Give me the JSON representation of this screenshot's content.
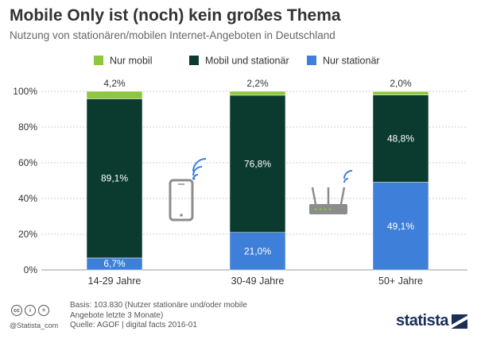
{
  "title": "Mobile Only ist (noch) kein großes Thema",
  "subtitle": "Nutzung von stationären/mobilen Internet-Angeboten in Deutschland",
  "colors": {
    "nur_mobil": "#8ec63f",
    "mobil_und_stationaer": "#0b3b2e",
    "nur_stationaer": "#3e7fd9",
    "grid": "#cccccc",
    "icon": "#8c8c8c",
    "wifi": "#3e7fd9"
  },
  "chart_data": {
    "type": "bar",
    "stacked": true,
    "categories": [
      "14-29 Jahre",
      "30-49 Jahre",
      "50+ Jahre"
    ],
    "series": [
      {
        "name": "Nur stationär",
        "values": [
          6.7,
          21.0,
          49.1
        ],
        "labels": [
          "6,7%",
          "21,0%",
          "49,1%"
        ],
        "color_key": "nur_stationaer"
      },
      {
        "name": "Mobil und stationär",
        "values": [
          89.1,
          76.8,
          48.8
        ],
        "labels": [
          "89,1%",
          "76,8%",
          "48,8%"
        ],
        "color_key": "mobil_und_stationaer"
      },
      {
        "name": "Nur mobil",
        "values": [
          4.2,
          2.2,
          2.0
        ],
        "labels": [
          "4,2%",
          "2,2%",
          "2,0%"
        ],
        "color_key": "nur_mobil"
      }
    ],
    "legend_order": [
      "Nur mobil",
      "Mobil und stationär",
      "Nur stationär"
    ],
    "legend_position": "top",
    "yticks": [
      "0%",
      "20%",
      "40%",
      "60%",
      "80%",
      "100%"
    ],
    "ylim": [
      0,
      100
    ],
    "grid": true
  },
  "icons": [
    "smartphone-wifi-icon",
    "router-icon"
  ],
  "footer": {
    "basis": "Basis: 103.830 (Nutzer stationäre und/oder mobile Angebote letzte 3 Monate)",
    "quelle": "Quelle: AGOF | digital facts 2016-01",
    "handle": "@Statista_com",
    "cc_icons": [
      "cc",
      "i",
      "="
    ],
    "logo_text": "statista"
  }
}
